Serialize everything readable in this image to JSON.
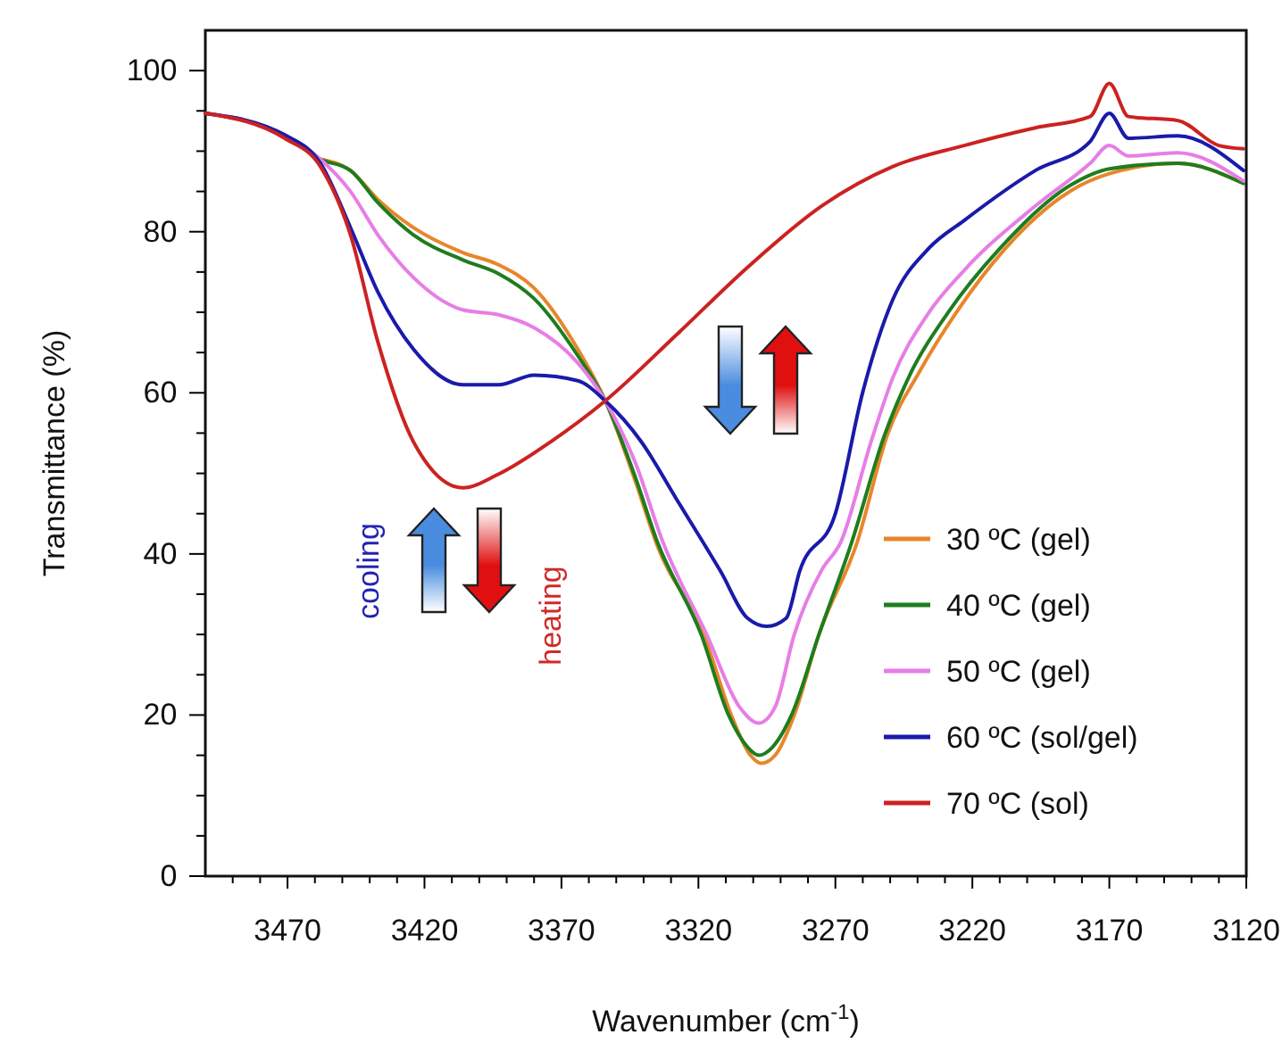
{
  "chart_data": {
    "type": "line",
    "xlabel": "Wavenumber (cm$^{-1}$)",
    "ylabel": "Transmittance (%)",
    "xlim": [
      3500,
      3120
    ],
    "ylim": [
      0,
      105
    ],
    "xticks": [
      {
        "value": 3490,
        "label": null
      },
      {
        "value": 3480,
        "label": null
      },
      3470,
      {
        "value": 3460,
        "label": null
      },
      {
        "value": 3450,
        "label": null
      },
      {
        "value": 3440,
        "label": null
      },
      {
        "value": 3430,
        "label": null
      },
      3420,
      {
        "value": 3410,
        "label": null
      },
      {
        "value": 3400,
        "label": null
      },
      {
        "value": 3390,
        "label": null
      },
      {
        "value": 3380,
        "label": null
      },
      3370,
      {
        "value": 3360,
        "label": null
      },
      {
        "value": 3350,
        "label": null
      },
      {
        "value": 3340,
        "label": null
      },
      {
        "value": 3330,
        "label": null
      },
      3320,
      {
        "value": 3310,
        "label": null
      },
      {
        "value": 3300,
        "label": null
      },
      {
        "value": 3290,
        "label": null
      },
      {
        "value": 3280,
        "label": null
      },
      3270,
      {
        "value": 3260,
        "label": null
      },
      {
        "value": 3250,
        "label": null
      },
      {
        "value": 3240,
        "label": null
      },
      {
        "value": 3230,
        "label": null
      },
      3220,
      {
        "value": 3210,
        "label": null
      },
      {
        "value": 3200,
        "label": null
      },
      {
        "value": 3190,
        "label": null
      },
      {
        "value": 3180,
        "label": null
      },
      3170,
      {
        "value": 3160,
        "label": null
      },
      {
        "value": 3150,
        "label": null
      },
      {
        "value": 3140,
        "label": null
      },
      {
        "value": 3130,
        "label": null
      },
      3120
    ],
    "yticks": [
      0,
      {
        "value": 5,
        "label": null
      },
      {
        "value": 10,
        "label": null
      },
      {
        "value": 15,
        "label": null
      },
      20,
      {
        "value": 25,
        "label": null
      },
      {
        "value": 30,
        "label": null
      },
      {
        "value": 35,
        "label": null
      },
      40,
      {
        "value": 45,
        "label": null
      },
      {
        "value": 50,
        "label": null
      },
      {
        "value": 55,
        "label": null
      },
      60,
      {
        "value": 65,
        "label": null
      },
      {
        "value": 70,
        "label": null
      },
      {
        "value": 75,
        "label": null
      },
      80,
      {
        "value": 85,
        "label": null
      },
      {
        "value": 90,
        "label": null
      },
      {
        "value": 95,
        "label": null
      },
      100
    ],
    "legend": "bottom right",
    "grid": false,
    "marker": "none",
    "line_style": "solid",
    "annotations": [
      "cooling",
      "heating"
    ],
    "series": [
      {
        "name": "30 ºC (gel)",
        "color": "#e8862a",
        "x": [
          3458,
          3447,
          3437,
          3424,
          3406,
          3393,
          3380,
          3364,
          3354,
          3343,
          3335,
          3318,
          3308,
          3301,
          3297,
          3292,
          3285,
          3276,
          3262,
          3251,
          3239,
          3226,
          3208,
          3184,
          3170,
          3145,
          3121
        ],
        "values": [
          89,
          87.6,
          84,
          80.5,
          77.4,
          75.9,
          73,
          65.4,
          59,
          49,
          41,
          30,
          20,
          15,
          14,
          15,
          20,
          30,
          41.5,
          54.8,
          62.8,
          69.9,
          77.9,
          85.1,
          87.2,
          88.5,
          86
        ]
      },
      {
        "name": "40 ºC (gel)",
        "color": "#1e7d1e",
        "x": [
          3500,
          3471,
          3458,
          3447,
          3437,
          3424,
          3406,
          3393,
          3380,
          3364,
          3354,
          3343,
          3335,
          3319,
          3309,
          3302,
          3298,
          3293,
          3286,
          3276,
          3264,
          3252,
          3242,
          3229,
          3210,
          3184,
          3170,
          3145,
          3121
        ],
        "values": [
          94.7,
          92,
          89,
          87.6,
          83.6,
          79.6,
          76.5,
          74.8,
          71.7,
          64.6,
          59,
          49.5,
          41.5,
          30,
          20,
          16,
          15,
          16,
          20,
          30,
          41.5,
          54.8,
          62.8,
          69.9,
          77.9,
          85.8,
          87.8,
          88.5,
          86
        ]
      },
      {
        "name": "50 ºC (gel)",
        "color": "#e67ee6",
        "x": [
          3500,
          3471,
          3458,
          3447,
          3437,
          3424,
          3406,
          3393,
          3380,
          3364,
          3354,
          3343,
          3333,
          3317,
          3305,
          3298,
          3292,
          3285,
          3275,
          3268,
          3257,
          3249,
          3236,
          3223,
          3197,
          3177,
          3170,
          3163,
          3145,
          3121
        ],
        "values": [
          94.7,
          92,
          89,
          85,
          79.6,
          74.3,
          70.3,
          69.7,
          68.1,
          63.7,
          59,
          51.3,
          41.5,
          30,
          21,
          19,
          21,
          30,
          38,
          41.5,
          53.9,
          61.9,
          69.9,
          75.2,
          83.2,
          88.5,
          90.7,
          89.4,
          89.8,
          86.3
        ]
      },
      {
        "name": "60 ºC (sol/gel)",
        "color": "#1a1aaa",
        "x": [
          3500,
          3471,
          3458,
          3447,
          3437,
          3424,
          3406,
          3393,
          3380,
          3364,
          3354,
          3341,
          3328,
          3312,
          3302,
          3295,
          3288,
          3283,
          3270,
          3260,
          3249,
          3236,
          3223,
          3197,
          3177,
          3170,
          3163,
          3145,
          3121
        ],
        "values": [
          94.7,
          92,
          88.5,
          80.5,
          72.5,
          65.4,
          61,
          61,
          62.2,
          61.5,
          59,
          54,
          46.8,
          37.9,
          32,
          31,
          32,
          37.9,
          45,
          60.1,
          71.6,
          77.9,
          81.4,
          87.6,
          91.2,
          94.7,
          91.6,
          91.9,
          87.6
        ]
      },
      {
        "name": "70 ºC (sol)",
        "color": "#cc2222",
        "x": [
          3500,
          3471,
          3458,
          3447,
          3437,
          3424,
          3406,
          3393,
          3374,
          3354,
          3328,
          3302,
          3275,
          3249,
          3223,
          3197,
          3177,
          3170,
          3163,
          3145,
          3130,
          3121
        ],
        "values": [
          94.7,
          91.6,
          88.1,
          79.6,
          66.3,
          53.9,
          48.2,
          49.9,
          53.9,
          59,
          67.2,
          75.6,
          83.2,
          88.1,
          90.7,
          92.9,
          94.3,
          98.4,
          94.3,
          93.8,
          90.7,
          90.3
        ]
      }
    ]
  }
}
